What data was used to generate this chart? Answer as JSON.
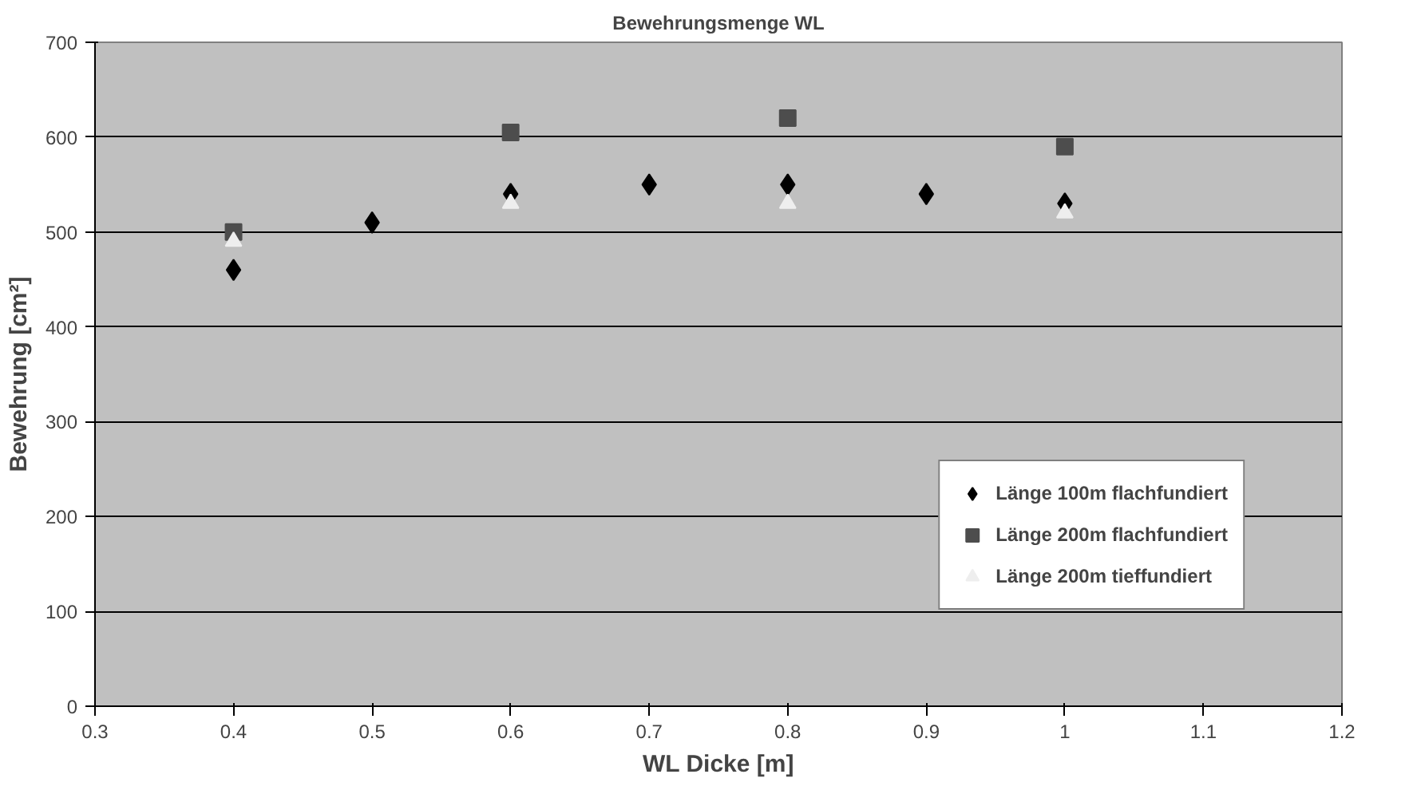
{
  "chart_data": {
    "type": "scatter",
    "title": "Bewehrungsmenge WL",
    "xlabel": "WL Dicke [m]",
    "ylabel": "Bewehrung [cm²]",
    "xlim": [
      0.3,
      1.2
    ],
    "xticks": [
      0.3,
      0.4,
      0.5,
      0.6,
      0.7,
      0.8,
      0.9,
      1,
      1.1,
      1.2
    ],
    "ylim": [
      0,
      700
    ],
    "yticks": [
      0,
      100,
      200,
      300,
      400,
      500,
      600,
      700
    ],
    "grid": "y",
    "legend": "bottom right",
    "series": [
      {
        "name": "Länge 100m flachfundiert",
        "color": "#000000",
        "marker": "diamond",
        "x": [
          0.4,
          0.5,
          0.6,
          0.7,
          0.8,
          0.9,
          1
        ],
        "values": [
          460,
          510,
          540,
          550,
          550,
          540,
          530
        ]
      },
      {
        "name": "Länge 200m flachfundiert",
        "color": "#4d4d4d",
        "marker": "square",
        "x": [
          0.4,
          0.6,
          0.8,
          1
        ],
        "values": [
          500,
          605,
          620,
          590
        ]
      },
      {
        "name": "Länge 200m tieffundiert",
        "color": "#eeeeee",
        "marker": "triangle",
        "x": [
          0.4,
          0.6,
          0.8,
          1
        ],
        "values": [
          490,
          530,
          530,
          520
        ]
      }
    ]
  }
}
